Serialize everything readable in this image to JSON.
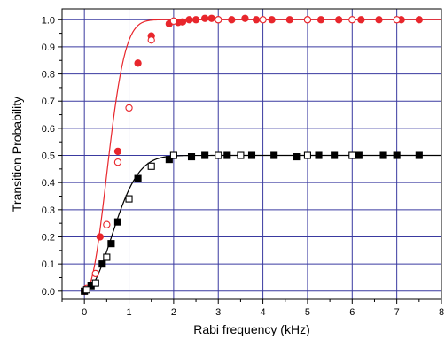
{
  "chart_data": {
    "type": "scatter",
    "title": "",
    "xlabel": "Rabi frequency (kHz)",
    "ylabel": "Transition Probability",
    "xlim": [
      -0.5,
      8
    ],
    "ylim": [
      -0.03,
      1.04
    ],
    "x_ticks": [
      0,
      1,
      2,
      3,
      4,
      5,
      6,
      7,
      8
    ],
    "x_tick_labels": [
      "0",
      "1",
      "2",
      "3",
      "4",
      "5",
      "6",
      "7",
      "8"
    ],
    "y_ticks": [
      0.0,
      0.1,
      0.2,
      0.3,
      0.4,
      0.5,
      0.6,
      0.7,
      0.8,
      0.9,
      1.0
    ],
    "y_tick_labels": [
      "0.0",
      "0.1",
      "0.2",
      "0.3",
      "0.4",
      "0.5",
      "0.6",
      "0.7",
      "0.8",
      "0.9",
      "1.0"
    ],
    "grid": true,
    "grid_color": "#3a3aa0",
    "legend": false,
    "series": [
      {
        "marker": "filled-circle",
        "color": "#e8262c",
        "x": [
          0.0,
          0.35,
          0.75,
          1.2,
          1.5,
          1.9,
          2.1,
          2.2,
          2.35,
          2.5,
          2.7,
          2.85,
          3.0,
          3.3,
          3.6,
          3.85,
          4.2,
          4.6,
          5.0,
          5.3,
          5.7,
          6.2,
          6.6,
          7.1,
          7.5
        ],
        "y": [
          0.0,
          0.2,
          0.515,
          0.84,
          0.94,
          0.985,
          0.99,
          0.992,
          1.0,
          1.0,
          1.005,
          1.005,
          1.0,
          1.0,
          1.005,
          1.0,
          1.0,
          1.0,
          1.0,
          1.0,
          1.0,
          1.0,
          1.0,
          1.0,
          1.0
        ]
      },
      {
        "marker": "open-circle",
        "color": "#e8262c",
        "x": [
          0.05,
          0.25,
          0.5,
          0.75,
          1.0,
          1.5,
          2.0,
          3.0,
          4.0,
          5.0,
          6.0,
          7.0
        ],
        "y": [
          0.01,
          0.065,
          0.245,
          0.475,
          0.675,
          0.925,
          0.995,
          1.0,
          1.0,
          1.0,
          1.0,
          1.0
        ]
      },
      {
        "marker": "filled-square",
        "color": "#000000",
        "x": [
          0.0,
          0.15,
          0.4,
          0.6,
          0.75,
          1.2,
          1.9,
          2.4,
          2.7,
          3.2,
          3.75,
          4.25,
          4.75,
          5.25,
          5.6,
          6.15,
          6.7,
          7.0,
          7.5
        ],
        "y": [
          0.0,
          0.02,
          0.1,
          0.175,
          0.255,
          0.415,
          0.485,
          0.495,
          0.5,
          0.5,
          0.5,
          0.5,
          0.495,
          0.5,
          0.5,
          0.5,
          0.5,
          0.5,
          0.5
        ]
      },
      {
        "marker": "open-square",
        "color": "#000000",
        "x": [
          0.05,
          0.25,
          0.5,
          1.0,
          1.5,
          2.0,
          3.0,
          3.5,
          5.0,
          6.0
        ],
        "y": [
          0.005,
          0.03,
          0.125,
          0.34,
          0.46,
          0.5,
          0.5,
          0.5,
          0.5,
          0.5
        ]
      }
    ],
    "fit_curves": [
      {
        "color": "#e8262c",
        "amplitude": 1.0,
        "width": 0.65,
        "power": 2.2
      },
      {
        "color": "#000000",
        "amplitude": 0.5,
        "width": 0.85,
        "power": 2.0
      }
    ]
  }
}
